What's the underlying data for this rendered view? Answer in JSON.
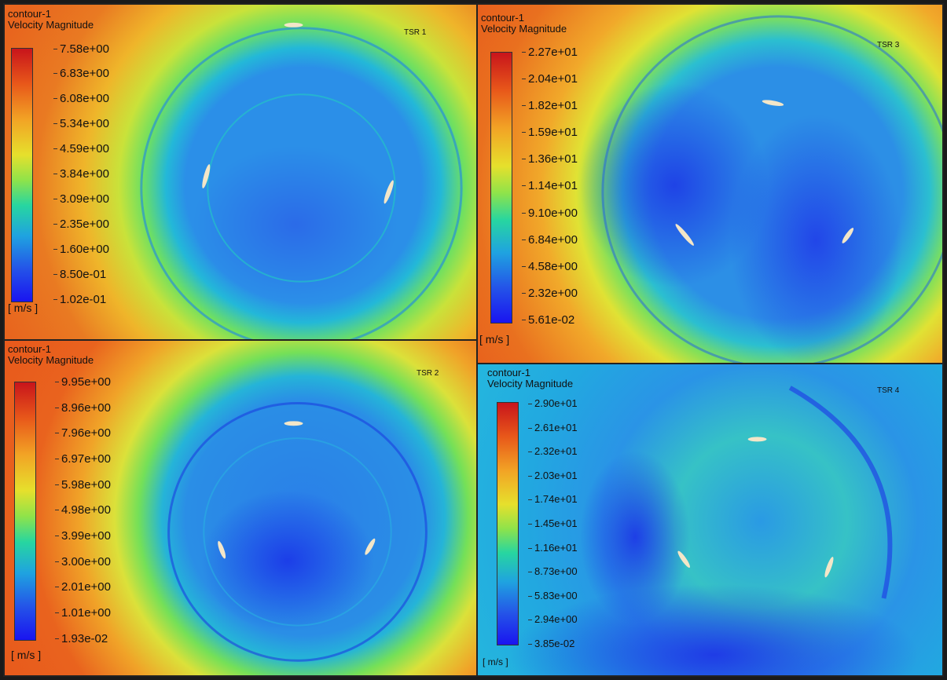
{
  "panels": [
    {
      "contour": "contour-1",
      "quantity": "Velocity Magnitude",
      "label": "TSR 1",
      "unit": "[ m/s ]",
      "ticks": [
        "7.58e+00",
        "6.83e+00",
        "6.08e+00",
        "5.34e+00",
        "4.59e+00",
        "3.84e+00",
        "3.09e+00",
        "2.35e+00",
        "1.60e+00",
        "8.50e-01",
        "1.02e-01"
      ]
    },
    {
      "contour": "contour-1",
      "quantity": "Velocity Magnitude",
      "label": "TSR 3",
      "unit": "[ m/s ]",
      "ticks": [
        "2.27e+01",
        "2.04e+01",
        "1.82e+01",
        "1.59e+01",
        "1.36e+01",
        "1.14e+01",
        "9.10e+00",
        "6.84e+00",
        "4.58e+00",
        "2.32e+00",
        "5.61e-02"
      ]
    },
    {
      "contour": "contour-1",
      "quantity": "Velocity Magnitude",
      "label": "TSR 2",
      "unit": "[ m/s ]",
      "ticks": [
        "9.95e+00",
        "8.96e+00",
        "7.96e+00",
        "6.97e+00",
        "5.98e+00",
        "4.98e+00",
        "3.99e+00",
        "3.00e+00",
        "2.01e+00",
        "1.01e+00",
        "1.93e-02"
      ]
    },
    {
      "contour": "contour-1",
      "quantity": "Velocity Magnitude",
      "label": "TSR 4",
      "unit": "[ m/s ]",
      "ticks": [
        "2.90e+01",
        "2.61e+01",
        "2.32e+01",
        "2.03e+01",
        "1.74e+01",
        "1.45e+01",
        "1.16e+01",
        "8.73e+00",
        "5.83e+00",
        "2.94e+00",
        "3.85e-02"
      ]
    }
  ]
}
